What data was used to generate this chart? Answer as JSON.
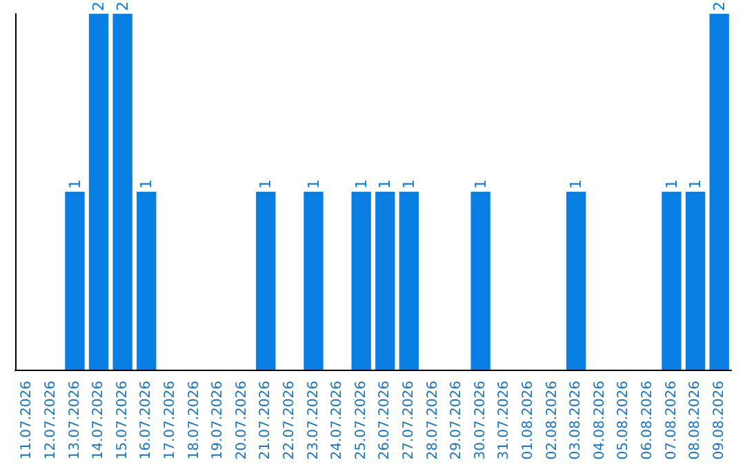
{
  "chart_data": {
    "type": "bar",
    "categories": [
      "11.07.2026",
      "12.07.2026",
      "13.07.2026",
      "14.07.2026",
      "15.07.2026",
      "16.07.2026",
      "17.07.2026",
      "18.07.2026",
      "19.07.2026",
      "20.07.2026",
      "21.07.2026",
      "22.07.2026",
      "23.07.2026",
      "24.07.2026",
      "25.07.2026",
      "26.07.2026",
      "27.07.2026",
      "28.07.2026",
      "29.07.2026",
      "30.07.2026",
      "31.07.2026",
      "01.08.2026",
      "02.08.2026",
      "03.08.2026",
      "04.08.2026",
      "05.08.2026",
      "06.08.2026",
      "07.08.2026",
      "08.08.2026",
      "09.08.2026"
    ],
    "values": [
      0,
      0,
      1,
      2,
      2,
      1,
      0,
      0,
      0,
      0,
      1,
      0,
      1,
      0,
      1,
      1,
      1,
      0,
      0,
      1,
      0,
      0,
      0,
      1,
      0,
      0,
      0,
      1,
      1,
      2
    ],
    "value_labels": [
      null,
      null,
      "1",
      "2",
      "2",
      "1",
      null,
      null,
      null,
      null,
      "1",
      null,
      "1",
      null,
      "1",
      "1",
      "1",
      null,
      null,
      "1",
      null,
      null,
      null,
      "1",
      null,
      null,
      null,
      "1",
      "1",
      "2"
    ],
    "color": "#0a7fe3",
    "tick_labels": "x"
  }
}
